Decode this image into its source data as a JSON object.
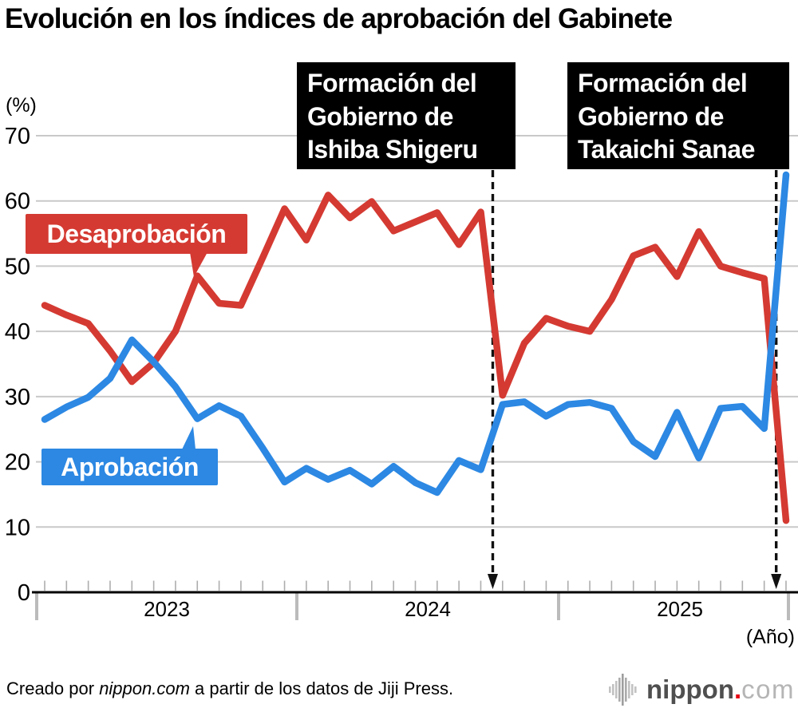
{
  "chart_data": {
    "type": "line",
    "title": "Evolución en los índices de aprobación del Gabinete",
    "y_unit": "(%)",
    "x_unit": "(Año)",
    "ylim": [
      0,
      70
    ],
    "y_ticks": [
      70,
      60,
      50,
      40,
      30,
      20,
      10,
      0
    ],
    "grid": "horizontal",
    "legend_position": "inline-callouts",
    "x_years": [
      "2023",
      "2024",
      "2025"
    ],
    "x_months": [
      "2023-01",
      "2023-02",
      "2023-03",
      "2023-04",
      "2023-05",
      "2023-06",
      "2023-07",
      "2023-08",
      "2023-09",
      "2023-10",
      "2023-11",
      "2023-12",
      "2024-01",
      "2024-02",
      "2024-03",
      "2024-04",
      "2024-05",
      "2024-06",
      "2024-07",
      "2024-08",
      "2024-09",
      "2024-10",
      "2024-11",
      "2024-12",
      "2025-01",
      "2025-02",
      "2025-03",
      "2025-04",
      "2025-05",
      "2025-06",
      "2025-07",
      "2025-08",
      "2025-09",
      "2025-10",
      "2025-11"
    ],
    "series": [
      {
        "name": "Desaprobación",
        "color": "#d43a32",
        "values": [
          44.0,
          42.5,
          41.2,
          37.0,
          32.3,
          35.2,
          40.0,
          48.5,
          44.3,
          44.0,
          51.3,
          58.8,
          54.0,
          60.9,
          57.4,
          59.9,
          55.4,
          56.8,
          58.2,
          53.3,
          58.3,
          30.2,
          38.2,
          42.0,
          40.8,
          40.0,
          44.9,
          51.6,
          52.9,
          48.4,
          55.3,
          50.0,
          49.0,
          48.1,
          11.0
        ]
      },
      {
        "name": "Aprobación",
        "color": "#2c88e3",
        "values": [
          26.5,
          28.4,
          29.9,
          32.8,
          38.7,
          35.3,
          31.5,
          26.6,
          28.6,
          27.0,
          22.1,
          16.9,
          19.0,
          17.3,
          18.7,
          16.6,
          19.3,
          16.8,
          15.3,
          20.2,
          18.8,
          28.8,
          29.2,
          27.0,
          28.8,
          29.1,
          28.2,
          23.1,
          20.8,
          27.6,
          20.6,
          28.2,
          28.5,
          25.1,
          64.0
        ]
      }
    ],
    "annotations": [
      {
        "lines": [
          "Formación del",
          "Gobierno de",
          "Ishiba Shigeru"
        ],
        "month_index": 20.55
      },
      {
        "lines": [
          "Formación del",
          "Gobierno de",
          "Takaichi Sanae"
        ],
        "month_index": 33.55
      }
    ]
  },
  "footer": {
    "credit_prefix": "Creado por ",
    "credit_site": "nippon.com",
    "credit_suffix": " a partir de los datos de Jiji Press."
  },
  "logo": {
    "text_main": "nippon",
    "text_dot": ".",
    "text_suffix": "com",
    "accent_color": "#e60012"
  }
}
